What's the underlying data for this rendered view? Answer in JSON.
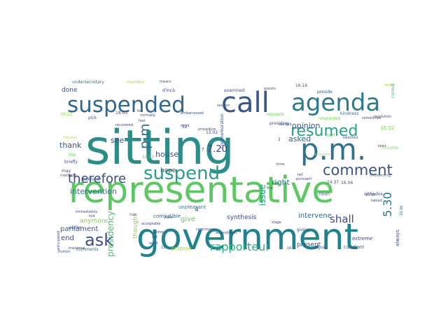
{
  "colors": {
    "background": "#ffffff"
  },
  "words": [
    {
      "text": "sitting",
      "color": "#2b8c8a"
    },
    {
      "text": "representative",
      "color": "#5cc862"
    },
    {
      "text": "government",
      "color": "#22818e"
    },
    {
      "text": "p.m.",
      "color": "#30728e"
    },
    {
      "text": "agenda",
      "color": "#2c7a8e"
    },
    {
      "text": "call",
      "color": "#39568c"
    },
    {
      "text": "suspended",
      "color": "#31678e"
    },
    {
      "text": "suspend",
      "color": "#2a9d8a"
    },
    {
      "text": "resumed",
      "color": "#23a487"
    },
    {
      "text": "comment",
      "color": "#3b528b"
    },
    {
      "text": "therefore",
      "color": "#3e4989"
    },
    {
      "text": "ask",
      "color": "#3e4c8a"
    },
    {
      "text": "rapporteur",
      "color": "#2ab07f"
    },
    {
      "text": "p.m",
      "color": "#2e6f8e"
    },
    {
      "text": "5.30",
      "color": "#2c728e"
    },
    {
      "text": "shall",
      "color": "#3f4788"
    },
    {
      "text": "7.20",
      "color": "#414487"
    },
    {
      "text": "issue",
      "color": "#1f9a8a"
    },
    {
      "text": "intervention",
      "color": "#2d708e"
    },
    {
      "text": "parliament",
      "color": "#38598c"
    },
    {
      "text": "presidency",
      "color": "#46c06f"
    },
    {
      "text": "house",
      "color": "#39568c"
    },
    {
      "text": "opinion",
      "color": "#375b8d"
    },
    {
      "text": "asked",
      "color": "#34618d"
    },
    {
      "text": "thank",
      "color": "#3b528b"
    },
    {
      "text": "right",
      "color": "#2c728e"
    },
    {
      "text": "give",
      "color": "#5ec962"
    },
    {
      "text": "intervene",
      "color": "#31678e"
    },
    {
      "text": "end",
      "color": "#3e4989"
    },
    {
      "text": "anymore",
      "color": "#7ad151"
    },
    {
      "text": "done",
      "color": "#3b528b"
    },
    {
      "text": "see",
      "color": "#3e4c8a"
    },
    {
      "text": "hope",
      "color": "#3f4788"
    },
    {
      "text": "thought",
      "color": "#86d549"
    },
    {
      "text": "synthesis",
      "color": "#3e4989"
    },
    {
      "text": "compatible",
      "color": "#35608d"
    },
    {
      "text": "unpleasant",
      "color": "#2a788e"
    },
    {
      "text": "propose",
      "color": "#95d840"
    },
    {
      "text": "present",
      "color": "#3b528b"
    },
    {
      "text": "candiani",
      "color": "#33628d"
    },
    {
      "text": "extreme",
      "color": "#3f4889"
    },
    {
      "text": "always",
      "color": "#3e4a89"
    },
    {
      "text": "comments",
      "color": "#2d708e"
    },
    {
      "text": "motion",
      "color": "#3b528b"
    },
    {
      "text": "earlier",
      "color": "#3e4989"
    },
    {
      "text": "beloved",
      "color": "#3b528b"
    },
    {
      "text": "briefly",
      "color": "#3e4c8a"
    },
    {
      "text": "like",
      "color": "#6ccd5a"
    },
    {
      "text": "may",
      "color": "#3e4989"
    },
    {
      "text": "marinello",
      "color": "#3e4989"
    },
    {
      "text": "immediately",
      "color": "#3e4989"
    },
    {
      "text": "undersecretary",
      "color": "#2d718e"
    },
    {
      "text": "member",
      "color": "#a2da37"
    },
    {
      "text": "means",
      "color": "#38588c"
    },
    {
      "text": "examined",
      "color": "#3e4989"
    },
    {
      "text": "preside",
      "color": "#38598c"
    },
    {
      "text": "presiding",
      "color": "#3b528b"
    },
    {
      "text": "kindness",
      "color": "#2e6e8e"
    },
    {
      "text": "responded",
      "color": "#7ad151"
    },
    {
      "text": "sometimes",
      "color": "#3f4788"
    },
    {
      "text": "requests",
      "color": "#6ece58"
    },
    {
      "text": "text",
      "color": "#5ec962"
    },
    {
      "text": "commemoration",
      "color": "#3b528b"
    },
    {
      "text": "session",
      "color": "#3b528b"
    },
    {
      "text": "noon",
      "color": "#3b528b"
    },
    {
      "text": "pursuant",
      "color": "#3e4989"
    },
    {
      "text": "anticipate",
      "color": "#b5de2b"
    },
    {
      "text": "orthodox",
      "color": "#3f4788"
    },
    {
      "text": "forewarning",
      "color": "#2e6f8e"
    },
    {
      "text": "tabled",
      "color": "#3e4989"
    },
    {
      "text": "16.16",
      "color": "#35608d"
    },
    {
      "text": "16.04",
      "color": "#3e4989"
    },
    {
      "text": "14.37",
      "color": "#3e4989"
    },
    {
      "text": "16.32",
      "color": "#7ad151"
    },
    {
      "text": "16.22",
      "color": "#8bd646"
    },
    {
      "text": "12.02",
      "color": "#414487"
    },
    {
      "text": "18.03",
      "color": "#3e4989"
    },
    {
      "text": "18.40",
      "color": "#5ec962"
    },
    {
      "text": "10.05",
      "color": "#31688e"
    },
    {
      "text": "16.06",
      "color": "#2f6c8e"
    },
    {
      "text": "repeat",
      "color": "#a8db34"
    },
    {
      "text": "correct",
      "color": "#35b779"
    },
    {
      "text": "pick",
      "color": "#3b528b"
    },
    {
      "text": "recovered",
      "color": "#3e4989"
    },
    {
      "text": "normally",
      "color": "#3e4989"
    },
    {
      "text": "procedure",
      "color": "#3e4989"
    },
    {
      "text": "amendment",
      "color": "#3e4989"
    },
    {
      "text": "controversy",
      "color": "#3e4989"
    },
    {
      "text": "acceptable",
      "color": "#3e4989"
    },
    {
      "text": "giving",
      "color": "#3e4989"
    },
    {
      "text": "argue",
      "color": "#3b528b"
    },
    {
      "text": "take",
      "color": "#3e4989"
    },
    {
      "text": "come",
      "color": "#3e4989"
    },
    {
      "text": "word",
      "color": "#3e4989"
    },
    {
      "text": "yet",
      "color": "#3e4989"
    },
    {
      "text": "rule",
      "color": "#3e4989"
    },
    {
      "text": "wanted",
      "color": "#3e4989"
    },
    {
      "text": "five",
      "color": "#3e4989"
    },
    {
      "text": "lost",
      "color": "#3e4989"
    },
    {
      "text": "stage",
      "color": "#3e4989"
    },
    {
      "text": "insolence",
      "color": "#3e4989"
    },
    {
      "text": "anticipated",
      "color": "#3e4989"
    },
    {
      "text": "minister",
      "color": "#b5de2b"
    },
    {
      "text": "relations",
      "color": "#3e4989"
    },
    {
      "text": "resolution",
      "color": "#3e4989"
    },
    {
      "text": "later",
      "color": "#3e4989"
    },
    {
      "text": "minutes",
      "color": "#8bd646"
    },
    {
      "text": "dealt",
      "color": "#3e4989"
    },
    {
      "text": "felt",
      "color": "#3e4989"
    },
    {
      "text": "feel",
      "color": "#3e4989"
    },
    {
      "text": "tell",
      "color": "#3e4989"
    },
    {
      "text": "time",
      "color": "#3e4989"
    },
    {
      "text": "assists",
      "color": "#3e4989"
    },
    {
      "text": "embarrassed",
      "color": "#3e4989"
    },
    {
      "text": "d'incà",
      "color": "#3e4989"
    },
    {
      "text": "12",
      "color": "#3e4989"
    },
    {
      "text": "2",
      "color": "#3e4989"
    },
    {
      "text": "4",
      "color": "#3e4989"
    },
    {
      "text": "11",
      "color": "#3e4989"
    },
    {
      "text": "16",
      "color": "#3e4989"
    },
    {
      "text": "?",
      "color": "#3e4989"
    }
  ]
}
